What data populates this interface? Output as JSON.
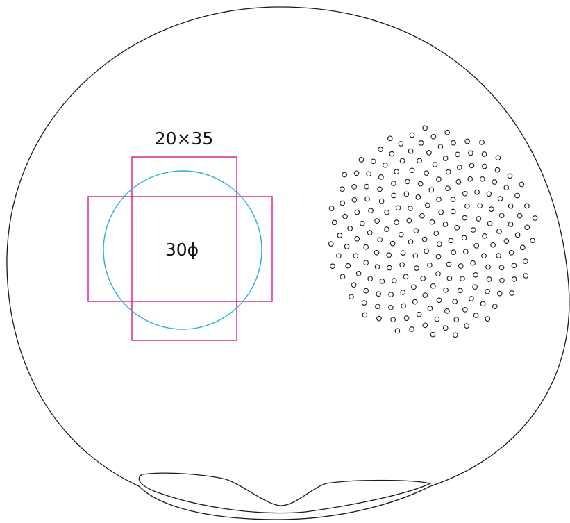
{
  "labels": {
    "rect_size": "20×35",
    "circle_diameter": "30ϕ"
  },
  "colors": {
    "outline": "#1a1a1a",
    "rectangles": "#d81b8c",
    "circle": "#29aedc",
    "holes": "#1a1a1a"
  }
}
